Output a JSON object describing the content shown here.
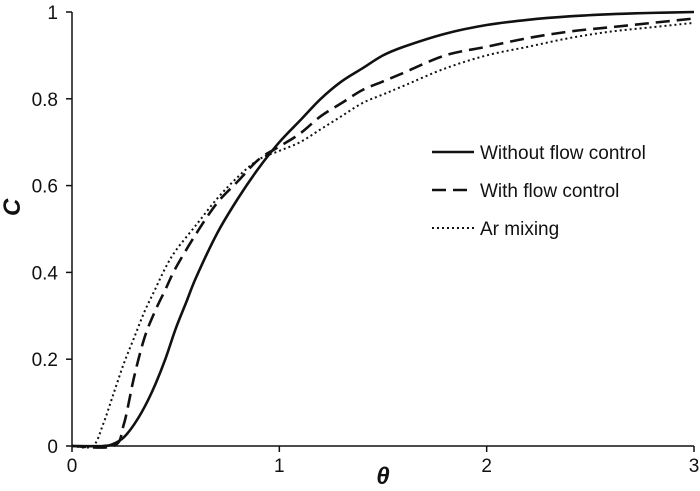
{
  "chart_data": {
    "type": "line",
    "title": "",
    "xlabel": "θ",
    "ylabel": "C",
    "xlim": [
      0,
      3
    ],
    "ylim": [
      0,
      1
    ],
    "xticks": [
      "0",
      "1",
      "2",
      "3"
    ],
    "yticks": [
      "0",
      "0.2",
      "0.4",
      "0.6",
      "0.8",
      "1"
    ],
    "grid": false,
    "legend_position": "right-center",
    "series": [
      {
        "name": "Without flow control",
        "line_style": "solid",
        "color": "#111111",
        "x": [
          0,
          0.15,
          0.2,
          0.25,
          0.3,
          0.35,
          0.4,
          0.45,
          0.5,
          0.55,
          0.6,
          0.7,
          0.8,
          0.9,
          1.0,
          1.1,
          1.2,
          1.3,
          1.4,
          1.5,
          1.6,
          1.8,
          2.0,
          2.2,
          2.4,
          2.6,
          2.8,
          3.0
        ],
        "y": [
          0,
          0,
          0.005,
          0.02,
          0.05,
          0.09,
          0.14,
          0.2,
          0.27,
          0.33,
          0.39,
          0.49,
          0.57,
          0.64,
          0.7,
          0.75,
          0.8,
          0.84,
          0.87,
          0.9,
          0.92,
          0.95,
          0.97,
          0.982,
          0.99,
          0.995,
          0.998,
          1.0
        ]
      },
      {
        "name": "With flow control",
        "line_style": "dashed",
        "color": "#111111",
        "x": [
          0,
          0.2,
          0.25,
          0.3,
          0.35,
          0.4,
          0.45,
          0.5,
          0.6,
          0.7,
          0.8,
          0.9,
          1.0,
          1.1,
          1.2,
          1.3,
          1.4,
          1.5,
          1.6,
          1.8,
          2.0,
          2.2,
          2.4,
          2.6,
          2.8,
          3.0
        ],
        "y": [
          0,
          0,
          0.05,
          0.16,
          0.25,
          0.31,
          0.36,
          0.41,
          0.49,
          0.56,
          0.61,
          0.66,
          0.69,
          0.72,
          0.76,
          0.79,
          0.82,
          0.84,
          0.86,
          0.9,
          0.92,
          0.94,
          0.955,
          0.965,
          0.975,
          0.985
        ]
      },
      {
        "name": "Ar mixing",
        "line_style": "dotted",
        "color": "#111111",
        "x": [
          0,
          0.1,
          0.15,
          0.2,
          0.25,
          0.3,
          0.35,
          0.4,
          0.45,
          0.5,
          0.6,
          0.7,
          0.8,
          0.9,
          1.0,
          1.1,
          1.2,
          1.3,
          1.4,
          1.5,
          1.6,
          1.8,
          2.0,
          2.2,
          2.4,
          2.6,
          2.8,
          3.0
        ],
        "y": [
          0,
          0,
          0.05,
          0.12,
          0.19,
          0.25,
          0.31,
          0.36,
          0.41,
          0.45,
          0.51,
          0.57,
          0.62,
          0.66,
          0.68,
          0.7,
          0.73,
          0.76,
          0.79,
          0.81,
          0.83,
          0.87,
          0.9,
          0.92,
          0.94,
          0.955,
          0.965,
          0.975
        ]
      }
    ]
  }
}
